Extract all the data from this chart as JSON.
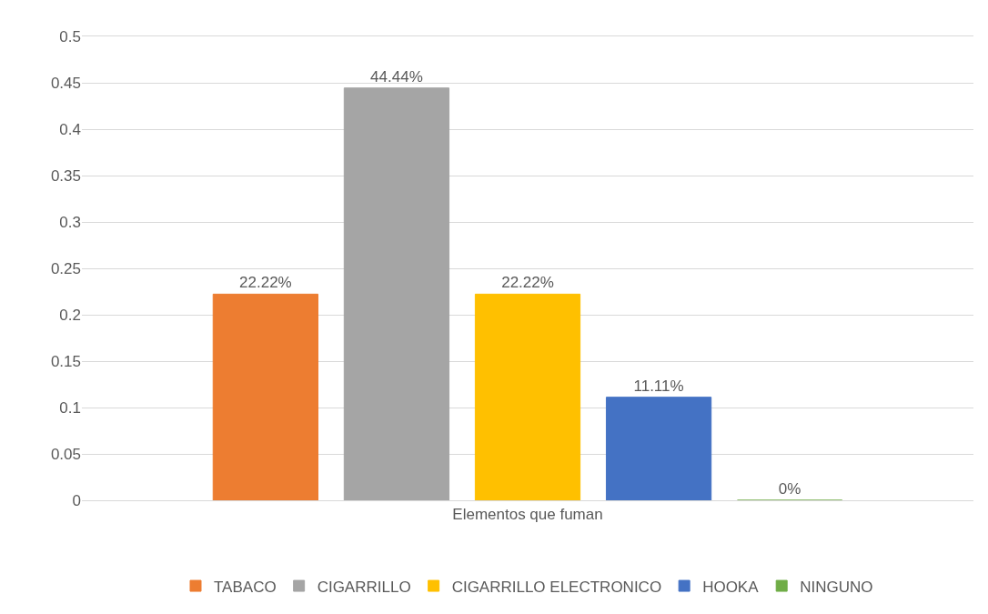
{
  "chart_data": {
    "type": "bar",
    "categories": [
      "Elementos que fuman"
    ],
    "series": [
      {
        "name": "TABACO",
        "color": "#ed7d31",
        "values": [
          0.2222
        ],
        "value_labels": [
          "22.22%"
        ]
      },
      {
        "name": "CIGARRILLO",
        "color": "#a5a5a5",
        "values": [
          0.4444
        ],
        "value_labels": [
          "44.44%"
        ]
      },
      {
        "name": "CIGARRILLO ELECTRONICO",
        "color": "#ffc000",
        "values": [
          0.2222
        ],
        "value_labels": [
          "22.22%"
        ]
      },
      {
        "name": "HOOKA",
        "color": "#4472c4",
        "values": [
          0.1111
        ],
        "value_labels": [
          "11.11%"
        ]
      },
      {
        "name": "NINGUNO",
        "color": "#70ad47",
        "values": [
          0
        ],
        "value_labels": [
          "0%"
        ]
      }
    ],
    "ylim": [
      0,
      0.5
    ],
    "yticks": [
      0,
      0.05,
      0.1,
      0.15,
      0.2,
      0.25,
      0.3,
      0.35,
      0.4,
      0.45,
      0.5
    ],
    "grid": "y",
    "legend": "bottom"
  }
}
